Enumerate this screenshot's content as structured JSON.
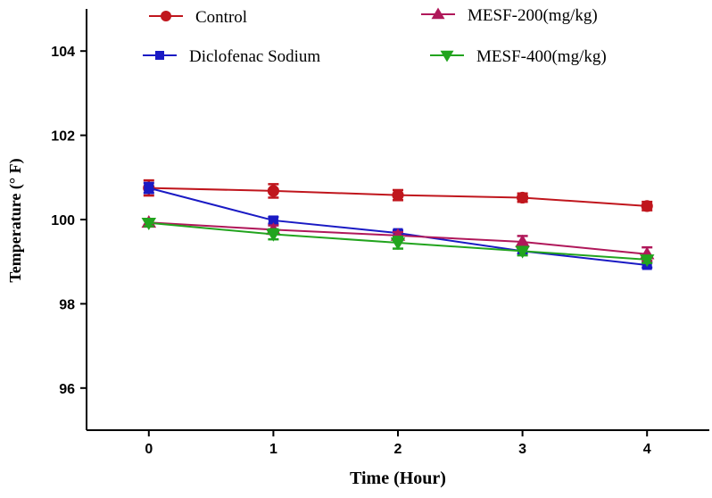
{
  "chart_data": {
    "type": "line",
    "title": "",
    "xlabel": "Time (Hour)",
    "ylabel": "Temperature (° F)",
    "x": [
      0,
      1,
      2,
      3,
      4
    ],
    "xlim": [
      -0.5,
      4.5
    ],
    "ylim": [
      95,
      105
    ],
    "x_ticks": [
      "0",
      "1",
      "2",
      "3",
      "4"
    ],
    "y_ticks": [
      "96",
      "98",
      "100",
      "102",
      "104"
    ],
    "y_tick_values": [
      96,
      98,
      100,
      102,
      104
    ],
    "grid": false,
    "legend_position": "top",
    "series": [
      {
        "name": "Control",
        "color": "#c0161d",
        "marker": "circle",
        "values": [
          100.75,
          100.68,
          100.58,
          100.52,
          100.32
        ],
        "errors": [
          0.18,
          0.16,
          0.12,
          0.1,
          0.1
        ]
      },
      {
        "name": "Diclofenac Sodium",
        "color": "#1a1ac4",
        "marker": "square",
        "values": [
          100.75,
          99.98,
          99.68,
          99.25,
          98.92
        ],
        "errors": [
          0.12,
          0.08,
          0.06,
          0.06,
          0.06
        ]
      },
      {
        "name": "MESF-200(mg/kg)",
        "color": "#b0185a",
        "marker": "triangle-up",
        "values": [
          99.93,
          99.76,
          99.62,
          99.47,
          99.18
        ],
        "errors": [
          0.06,
          0.1,
          0.08,
          0.14,
          0.16
        ]
      },
      {
        "name": "MESF-400(mg/kg)",
        "color": "#22a41e",
        "marker": "triangle-down",
        "values": [
          99.92,
          99.65,
          99.45,
          99.25,
          99.05
        ],
        "errors": [
          0.08,
          0.12,
          0.14,
          0.1,
          0.08
        ]
      }
    ]
  }
}
